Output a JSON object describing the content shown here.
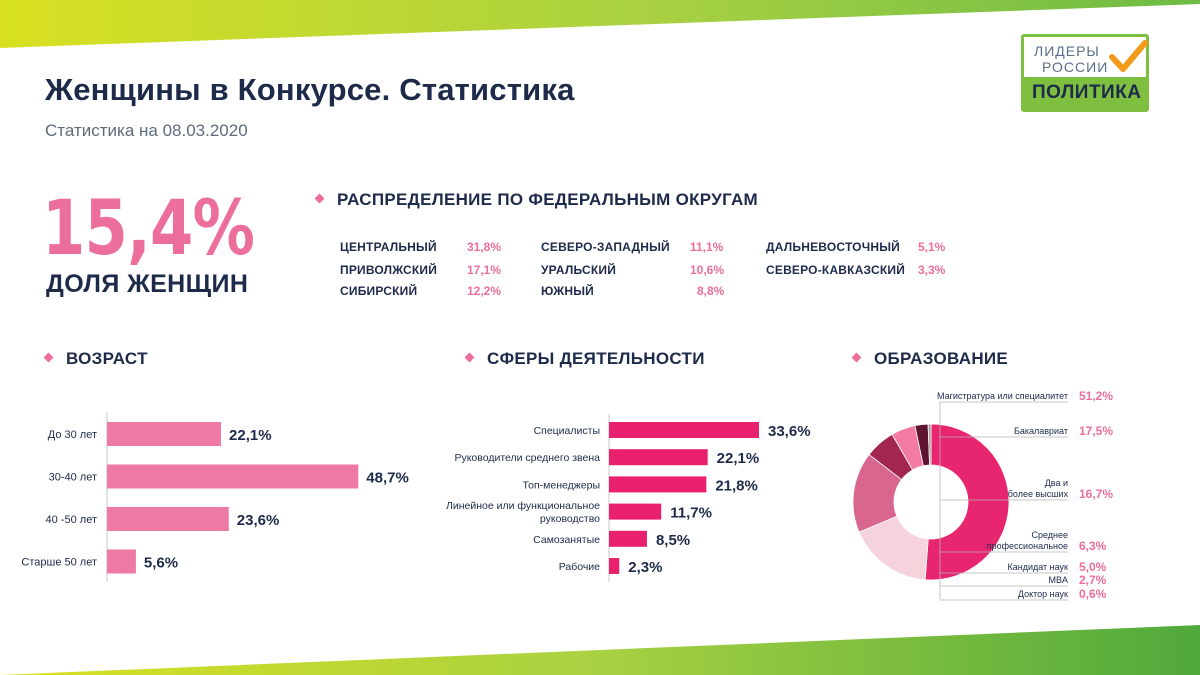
{
  "page": {
    "title": "Женщины в Конкурсе. Статистика",
    "subtitle": "Статистика на 08.03.2020"
  },
  "logo": {
    "line1": "ЛИДЕРЫ",
    "line2": "РОССИИ",
    "line3": "ПОЛИТИКА",
    "icon": "checkmark-icon"
  },
  "headline": {
    "value": "15,4%",
    "label": "ДОЛЯ ЖЕНЩИН"
  },
  "districts": {
    "title": "РАСПРЕДЕЛЕНИЕ ПО ФЕДЕРАЛЬНЫМ ОКРУГАМ",
    "items": [
      {
        "name": "ЦЕНТРАЛЬНЫЙ",
        "value": "31,8%"
      },
      {
        "name": "ПРИВОЛЖСКИЙ",
        "value": "17,1%"
      },
      {
        "name": "СИБИРСКИЙ",
        "value": "12,2%"
      },
      {
        "name": "СЕВЕРО-ЗАПАДНЫЙ",
        "value": "11,1%"
      },
      {
        "name": "УРАЛЬСКИЙ",
        "value": "10,6%"
      },
      {
        "name": "ЮЖНЫЙ",
        "value": "8,8%"
      },
      {
        "name": "ДАЛЬНЕВОСТОЧНЫЙ",
        "value": "5,1%"
      },
      {
        "name": "СЕВЕРО-КАВКАЗСКИЙ",
        "value": "3,3%"
      }
    ]
  },
  "colors": {
    "navy": "#1d2a4a",
    "pink": "#ec6e9c",
    "magenta": "#e8206e",
    "green": "#7fbf3f",
    "yellow_green": "#d9e021"
  },
  "chart_data": [
    {
      "type": "bar",
      "orientation": "horizontal",
      "title": "ВОЗРАСТ",
      "categories": [
        "До 30 лет",
        "30-40 лет",
        "40 -50 лет",
        "Старше 50 лет"
      ],
      "values": [
        22.1,
        48.7,
        23.6,
        5.6
      ],
      "labels": [
        "22,1%",
        "48,7%",
        "23,6%",
        "5,6%"
      ],
      "color": "#ef79a5",
      "xlim": [
        0,
        50
      ]
    },
    {
      "type": "bar",
      "orientation": "horizontal",
      "title": "СФЕРЫ ДЕЯТЕЛЬНОСТИ",
      "categories": [
        "Специалисты",
        "Руководители среднего звена",
        "Топ-менеджеры",
        "Линейное или функциональное руководство",
        "Самозанятые",
        "Рабочие"
      ],
      "category_lines": [
        [
          "Специалисты"
        ],
        [
          "Руководители среднего звена"
        ],
        [
          "Топ-менеджеры"
        ],
        [
          "Линейное или функциональное",
          "руководство"
        ],
        [
          "Самозанятые"
        ],
        [
          "Рабочие"
        ]
      ],
      "values": [
        33.6,
        22.1,
        21.8,
        11.7,
        8.5,
        2.3
      ],
      "labels": [
        "33,6%",
        "22,1%",
        "21,8%",
        "11,7%",
        "8,5%",
        "2,3%"
      ],
      "color": "#e8206e",
      "xlim": [
        0,
        34
      ]
    },
    {
      "type": "pie",
      "donut": true,
      "title": "ОБРАЗОВАНИЕ",
      "categories": [
        "Магистратура или специалитет",
        "Бакалавриат",
        "Два и более высших",
        "Среднее профессиональное",
        "Кандидат наук",
        "MBA",
        "Доктор наук"
      ],
      "category_lines": [
        [
          "Магистратура или специалитет"
        ],
        [
          "Бакалавриат"
        ],
        [
          "Два и",
          "более высших"
        ],
        [
          "Среднее",
          "профессиональное"
        ],
        [
          "Кандидат наук"
        ],
        [
          "MBA"
        ],
        [
          "Доктор наук"
        ]
      ],
      "values": [
        51.2,
        17.5,
        16.7,
        6.3,
        5.0,
        2.7,
        0.6
      ],
      "labels": [
        "51,2%",
        "17,5%",
        "16,7%",
        "6,3%",
        "5,0%",
        "2,7%",
        "0,6%"
      ],
      "colors": [
        "#e8256f",
        "#f6d3dc",
        "#d9668f",
        "#a3264f",
        "#f27aa3",
        "#5e1430",
        "#9a9a9a"
      ]
    }
  ]
}
